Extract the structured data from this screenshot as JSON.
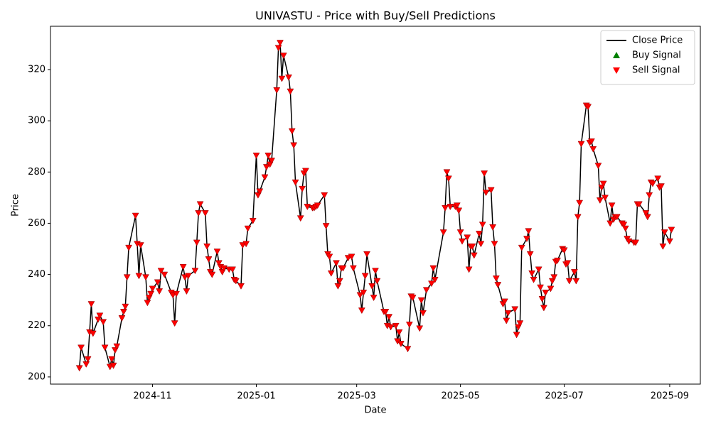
{
  "chart_data": {
    "type": "line",
    "title": "UNIVASTU - Price with Buy/Sell Predictions",
    "x_label": "Date",
    "y_label": "Price",
    "x": [
      "2024-09-19",
      "2024-09-20",
      "2024-09-23",
      "2024-09-24",
      "2024-09-25",
      "2024-09-26",
      "2024-09-27",
      "2024-09-30",
      "2024-10-01",
      "2024-10-03",
      "2024-10-04",
      "2024-10-07",
      "2024-10-08",
      "2024-10-09",
      "2024-10-10",
      "2024-10-11",
      "2024-10-14",
      "2024-10-15",
      "2024-10-16",
      "2024-10-17",
      "2024-10-18",
      "2024-10-22",
      "2024-10-23",
      "2024-10-24",
      "2024-10-25",
      "2024-10-28",
      "2024-10-29",
      "2024-10-30",
      "2024-10-31",
      "2024-11-01",
      "2024-11-04",
      "2024-11-05",
      "2024-11-06",
      "2024-11-08",
      "2024-11-12",
      "2024-11-13",
      "2024-11-14",
      "2024-11-15",
      "2024-11-19",
      "2024-11-20",
      "2024-11-21",
      "2024-11-22",
      "2024-11-26",
      "2024-11-27",
      "2024-11-28",
      "2024-11-29",
      "2024-12-02",
      "2024-12-03",
      "2024-12-04",
      "2024-12-05",
      "2024-12-06",
      "2024-12-09",
      "2024-12-10",
      "2024-12-11",
      "2024-12-12",
      "2024-12-13",
      "2024-12-16",
      "2024-12-18",
      "2024-12-19",
      "2024-12-20",
      "2024-12-23",
      "2024-12-24",
      "2024-12-26",
      "2024-12-27",
      "2024-12-30",
      "2025-01-01",
      "2025-01-02",
      "2025-01-03",
      "2025-01-06",
      "2025-01-07",
      "2025-01-08",
      "2025-01-09",
      "2025-01-10",
      "2025-01-13",
      "2025-01-14",
      "2025-01-15",
      "2025-01-16",
      "2025-01-17",
      "2025-01-20",
      "2025-01-21",
      "2025-01-22",
      "2025-01-23",
      "2025-01-24",
      "2025-01-27",
      "2025-01-28",
      "2025-01-29",
      "2025-01-30",
      "2025-01-31",
      "2025-02-03",
      "2025-02-04",
      "2025-02-05",
      "2025-02-06",
      "2025-02-10",
      "2025-02-11",
      "2025-02-12",
      "2025-02-13",
      "2025-02-14",
      "2025-02-17",
      "2025-02-18",
      "2025-02-19",
      "2025-02-20",
      "2025-02-21",
      "2025-02-24",
      "2025-02-26",
      "2025-02-27",
      "2025-03-03",
      "2025-03-04",
      "2025-03-05",
      "2025-03-06",
      "2025-03-07",
      "2025-03-10",
      "2025-03-11",
      "2025-03-12",
      "2025-03-13",
      "2025-03-17",
      "2025-03-18",
      "2025-03-19",
      "2025-03-20",
      "2025-03-21",
      "2025-03-24",
      "2025-03-25",
      "2025-03-26",
      "2025-03-27",
      "2025-03-31",
      "2025-04-01",
      "2025-04-02",
      "2025-04-03",
      "2025-04-07",
      "2025-04-08",
      "2025-04-09",
      "2025-04-11",
      "2025-04-14",
      "2025-04-15",
      "2025-04-16",
      "2025-04-21",
      "2025-04-22",
      "2025-04-23",
      "2025-04-24",
      "2025-04-25",
      "2025-04-28",
      "2025-04-29",
      "2025-04-30",
      "2025-05-01",
      "2025-05-02",
      "2025-05-05",
      "2025-05-06",
      "2025-05-07",
      "2025-05-08",
      "2025-05-09",
      "2025-05-12",
      "2025-05-13",
      "2025-05-14",
      "2025-05-15",
      "2025-05-16",
      "2025-05-19",
      "2025-05-20",
      "2025-05-21",
      "2025-05-22",
      "2025-05-23",
      "2025-05-26",
      "2025-05-27",
      "2025-05-28",
      "2025-05-29",
      "2025-06-02",
      "2025-06-03",
      "2025-06-04",
      "2025-06-05",
      "2025-06-06",
      "2025-06-09",
      "2025-06-10",
      "2025-06-11",
      "2025-06-12",
      "2025-06-13",
      "2025-06-16",
      "2025-06-17",
      "2025-06-18",
      "2025-06-19",
      "2025-06-20",
      "2025-06-23",
      "2025-06-24",
      "2025-06-25",
      "2025-06-26",
      "2025-06-27",
      "2025-06-30",
      "2025-07-01",
      "2025-07-02",
      "2025-07-03",
      "2025-07-04",
      "2025-07-07",
      "2025-07-08",
      "2025-07-09",
      "2025-07-10",
      "2025-07-11",
      "2025-07-14",
      "2025-07-15",
      "2025-07-16",
      "2025-07-17",
      "2025-07-18",
      "2025-07-21",
      "2025-07-22",
      "2025-07-23",
      "2025-07-24",
      "2025-07-25",
      "2025-07-28",
      "2025-07-29",
      "2025-07-30",
      "2025-07-31",
      "2025-08-01",
      "2025-08-04",
      "2025-08-05",
      "2025-08-06",
      "2025-08-07",
      "2025-08-08",
      "2025-08-11",
      "2025-08-12",
      "2025-08-13",
      "2025-08-14",
      "2025-08-18",
      "2025-08-19",
      "2025-08-20",
      "2025-08-21",
      "2025-08-22",
      "2025-08-25",
      "2025-08-26",
      "2025-08-27",
      "2025-08-28",
      "2025-08-29",
      "2025-09-01",
      "2025-09-02"
    ],
    "series": [
      {
        "name": "Close Price",
        "type": "line",
        "color": "#000000",
        "values": [
          203.5,
          211.5,
          205,
          207,
          217.5,
          228.5,
          217,
          222.5,
          224,
          221.5,
          211.5,
          204,
          207,
          204.5,
          210.5,
          212,
          223,
          225.5,
          227.5,
          239,
          250.5,
          263,
          252,
          239.5,
          251.5,
          239,
          229,
          231,
          232.5,
          234.5,
          237,
          233.5,
          241.5,
          240,
          233,
          232,
          221,
          232.5,
          243,
          239,
          233.5,
          239.5,
          241.5,
          252.5,
          264,
          267.5,
          264,
          251,
          246,
          241,
          240,
          249,
          244.5,
          243,
          241,
          242.5,
          242,
          242,
          238,
          237.5,
          235.5,
          251.5,
          252,
          258,
          261,
          286.5,
          271,
          272.5,
          278,
          282,
          286.5,
          283,
          284.5,
          312,
          328.5,
          330.5,
          316.5,
          325.5,
          317,
          311.5,
          296,
          290.5,
          276,
          262,
          273.5,
          279.5,
          280.5,
          266.5,
          266,
          266,
          266.5,
          267,
          271,
          259,
          248,
          247,
          240.5,
          244.5,
          235.5,
          237.5,
          242.5,
          242.5,
          246.5,
          247,
          242.5,
          232,
          226,
          233,
          239.5,
          248,
          235.5,
          231,
          241.5,
          237.5,
          225.5,
          225.5,
          220,
          223.5,
          219.5,
          220,
          214,
          217.5,
          213,
          211,
          220.5,
          231.5,
          231,
          219,
          230,
          225,
          234,
          236.5,
          242.5,
          238,
          256.5,
          266,
          280,
          277.5,
          266.5,
          266.5,
          267,
          265,
          256.5,
          253,
          254.5,
          242,
          251,
          251,
          247.5,
          256,
          252,
          259.5,
          279.5,
          272,
          273,
          258.5,
          252,
          238.5,
          236,
          228.5,
          229.5,
          222,
          225,
          226.5,
          216.5,
          219.5,
          221,
          250.5,
          254,
          257,
          248,
          240.5,
          238,
          242,
          235,
          230.5,
          227,
          233,
          234.5,
          237.5,
          239,
          245,
          245.5,
          250,
          249.5,
          244,
          244.5,
          237.5,
          241,
          237.5,
          262.5,
          268,
          291,
          306,
          305.5,
          291.5,
          292,
          289,
          282.5,
          269,
          274,
          275.5,
          270,
          260,
          267,
          261.5,
          262.5,
          262.5,
          260,
          259.5,
          258,
          254,
          253,
          252.5,
          252.5,
          267.5,
          267.5,
          264,
          262.5,
          271,
          276,
          275.5,
          277.5,
          274,
          274.5,
          251,
          256.5,
          253,
          257.5
        ]
      },
      {
        "name": "Buy Signal",
        "type": "scatter",
        "marker": "triangle-up",
        "color": "#008000",
        "x": [],
        "values": []
      },
      {
        "name": "Sell Signal",
        "type": "scatter",
        "marker": "triangle-down",
        "color": "#ff0000",
        "values": [
          203.5,
          211.5,
          205,
          207,
          217.5,
          228.5,
          217,
          222.5,
          224,
          221.5,
          211.5,
          204,
          207,
          204.5,
          210.5,
          212,
          223,
          225.5,
          227.5,
          239,
          250.5,
          263,
          252,
          239.5,
          251.5,
          239,
          229,
          231,
          232.5,
          234.5,
          237,
          233.5,
          241.5,
          240,
          233,
          232,
          221,
          232.5,
          243,
          239,
          233.5,
          239.5,
          241.5,
          252.5,
          264,
          267.5,
          264,
          251,
          246,
          241,
          240,
          249,
          244.5,
          243,
          241,
          242.5,
          242,
          242,
          238,
          237.5,
          235.5,
          251.5,
          252,
          258,
          261,
          286.5,
          271,
          272.5,
          278,
          282,
          286.5,
          283,
          284.5,
          312,
          328.5,
          330.5,
          316.5,
          325.5,
          317,
          311.5,
          296,
          290.5,
          276,
          262,
          273.5,
          279.5,
          280.5,
          266.5,
          266,
          266,
          266.5,
          267,
          271,
          259,
          248,
          247,
          240.5,
          244.5,
          235.5,
          237.5,
          242.5,
          242.5,
          246.5,
          247,
          242.5,
          232,
          226,
          233,
          239.5,
          248,
          235.5,
          231,
          241.5,
          237.5,
          225.5,
          225.5,
          220,
          223.5,
          219.5,
          220,
          214,
          217.5,
          213,
          211,
          220.5,
          231.5,
          231,
          219,
          230,
          225,
          234,
          236.5,
          242.5,
          238,
          256.5,
          266,
          280,
          277.5,
          266.5,
          266.5,
          267,
          265,
          256.5,
          253,
          254.5,
          242,
          251,
          251,
          247.5,
          256,
          252,
          259.5,
          279.5,
          272,
          273,
          258.5,
          252,
          238.5,
          236,
          228.5,
          229.5,
          222,
          225,
          226.5,
          216.5,
          219.5,
          221,
          250.5,
          254,
          257,
          248,
          240.5,
          238,
          242,
          235,
          230.5,
          227,
          233,
          234.5,
          237.5,
          239,
          245,
          245.5,
          250,
          249.5,
          244,
          244.5,
          237.5,
          241,
          237.5,
          262.5,
          268,
          291,
          306,
          305.5,
          291.5,
          292,
          289,
          282.5,
          269,
          274,
          275.5,
          270,
          260,
          267,
          261.5,
          262.5,
          262.5,
          260,
          259.5,
          258,
          254,
          253,
          252.5,
          252.5,
          267.5,
          267.5,
          264,
          262.5,
          271,
          276,
          275.5,
          277.5,
          274,
          274.5,
          251,
          256.5,
          253,
          257.5
        ]
      }
    ],
    "xlim": [
      "2024-09-02",
      "2025-09-19"
    ],
    "xticks": [
      {
        "value": "2024-11-01",
        "label": "2024-11"
      },
      {
        "value": "2025-01-01",
        "label": "2025-01"
      },
      {
        "value": "2025-03-01",
        "label": "2025-03"
      },
      {
        "value": "2025-05-01",
        "label": "2025-05"
      },
      {
        "value": "2025-07-01",
        "label": "2025-07"
      },
      {
        "value": "2025-09-01",
        "label": "2025-09"
      }
    ],
    "ylim": [
      197.2,
      336.9
    ],
    "yticks": [
      200,
      220,
      240,
      260,
      280,
      300,
      320
    ],
    "legend": "upper right",
    "grid": false
  }
}
